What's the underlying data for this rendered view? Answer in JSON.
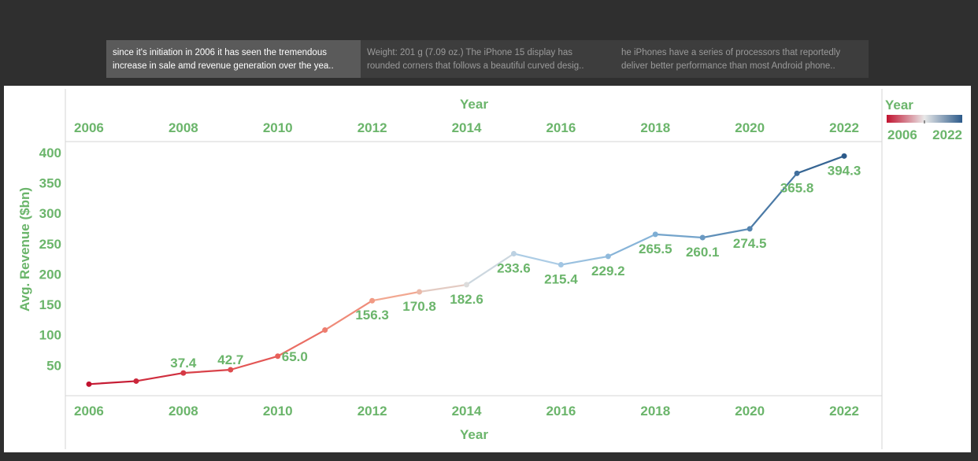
{
  "tabs": [
    {
      "line1": "since it's initiation in 2006 it has seen the tremendous",
      "line2": "increase in sale amd revenue generation over the yea.."
    },
    {
      "line1": "Weight: 201 g (7.09 oz.) The iPhone 15 display has",
      "line2": "rounded corners that follows a beautiful curved desig.."
    },
    {
      "line1": "he iPhones have a series of processors that reportedly",
      "line2": "deliver better performance than most Android phone.."
    }
  ],
  "legend": {
    "title": "Year",
    "min_label": "2006",
    "max_label": "2022"
  },
  "colors": {
    "axis_text": "#6bb56b",
    "low": "#c1122f",
    "mid": "#dcdcdc",
    "high": "#2c5a8a"
  },
  "chart_data": {
    "type": "line",
    "xlabel": "Year",
    "ylabel": "Avg. Revenue ($bn)",
    "xlim": [
      2005.5,
      2022.8
    ],
    "ylim": [
      0,
      418
    ],
    "x_ticks": [
      2006,
      2008,
      2010,
      2012,
      2014,
      2016,
      2018,
      2020,
      2022
    ],
    "y_ticks": [
      50,
      100,
      150,
      200,
      250,
      300,
      350,
      400
    ],
    "x": [
      2006,
      2007,
      2008,
      2009,
      2010,
      2011,
      2012,
      2013,
      2014,
      2015,
      2016,
      2017,
      2018,
      2019,
      2020,
      2021,
      2022
    ],
    "values": [
      19,
      24,
      37.4,
      42.7,
      65.0,
      108,
      156.3,
      170.8,
      182.6,
      233.6,
      215.4,
      229.2,
      265.5,
      260.1,
      274.5,
      365.8,
      394.3
    ],
    "data_labels": [
      {
        "x": 2008,
        "text": "37.4"
      },
      {
        "x": 2009,
        "text": "42.7"
      },
      {
        "x": 2010,
        "text": "65.0"
      },
      {
        "x": 2012,
        "text": "156.3"
      },
      {
        "x": 2013,
        "text": "170.8"
      },
      {
        "x": 2014,
        "text": "182.6"
      },
      {
        "x": 2015,
        "text": "233.6"
      },
      {
        "x": 2016,
        "text": "215.4"
      },
      {
        "x": 2017,
        "text": "229.2"
      },
      {
        "x": 2018,
        "text": "265.5"
      },
      {
        "x": 2019,
        "text": "260.1"
      },
      {
        "x": 2020,
        "text": "274.5"
      },
      {
        "x": 2021,
        "text": "365.8"
      },
      {
        "x": 2022,
        "text": "394.3"
      }
    ],
    "color_encoding": "Year (diverging red to blue)"
  }
}
